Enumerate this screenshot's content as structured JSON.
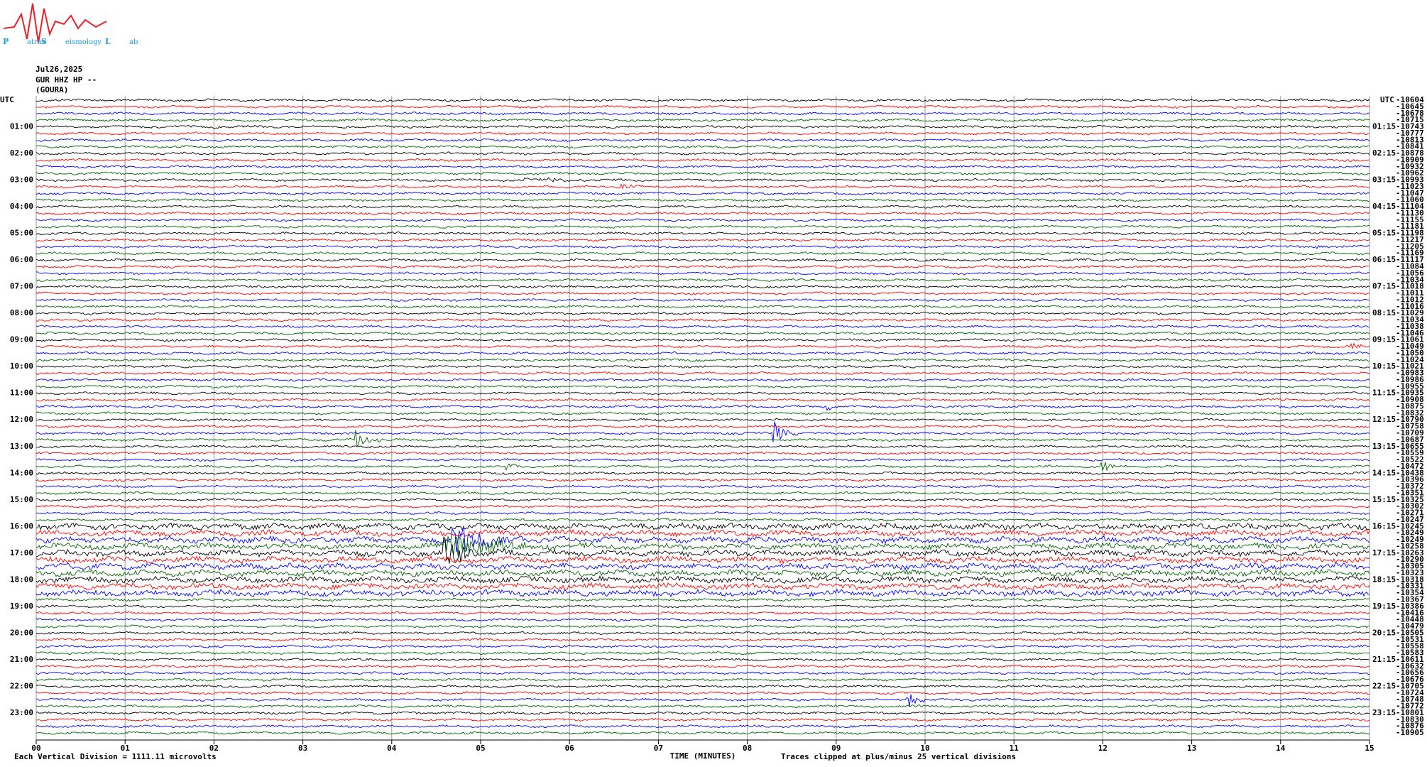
{
  "logo": {
    "letters": [
      "P",
      "S",
      "L"
    ],
    "words": [
      "atras",
      "eismology",
      "ab"
    ]
  },
  "header": {
    "date": "Jul26,2025",
    "station": "GUR HHZ HP --",
    "site": "(GOURA)"
  },
  "plot": {
    "utc_left": "UTC",
    "utc_right": "UTC",
    "left_labels": [
      "01:00",
      "02:00",
      "03:00",
      "04:00",
      "05:00",
      "06:00",
      "07:00",
      "08:00",
      "09:00",
      "10:00",
      "11:00",
      "12:00",
      "13:00",
      "14:00",
      "15:00",
      "16:00",
      "17:00",
      "18:00",
      "19:00",
      "20:00",
      "21:00",
      "22:00",
      "23:00"
    ],
    "right_labels": [
      "01:15",
      "02:15",
      "03:15",
      "04:15",
      "05:15",
      "06:15",
      "07:15",
      "08:15",
      "09:15",
      "10:15",
      "11:15",
      "12:15",
      "13:15",
      "14:15",
      "15:15",
      "16:15",
      "17:15",
      "18:15",
      "19:15",
      "20:15",
      "21:15",
      "22:15",
      "23:15"
    ],
    "trace_offsets": [
      "-10604",
      "-10645",
      "-10678",
      "-10715",
      "-10743",
      "-10777",
      "-10813",
      "-10841",
      "-10878",
      "-10909",
      "-10932",
      "-10962",
      "-10993",
      "-11023",
      "-11047",
      "-11060",
      "-11104",
      "-11130",
      "-11155",
      "-11181",
      "-11198",
      "-11217",
      "-11205",
      "-11169",
      "-11117",
      "-11084",
      "-11056",
      "-11034",
      "-11018",
      "-11011",
      "-11012",
      "-11016",
      "-11029",
      "-11034",
      "-11038",
      "-11046",
      "-11061",
      "-11049",
      "-11050",
      "-11024",
      "-11021",
      "-10983",
      "-10986",
      "-10955",
      "-10935",
      "-10908",
      "-10875",
      "-10832",
      "-10790",
      "-10758",
      "-10709",
      "-10687",
      "-10655",
      "-10559",
      "-10522",
      "-10472",
      "-10438",
      "-10396",
      "-10372",
      "-10351",
      "-10325",
      "-10302",
      "-10271",
      "-10247",
      "-10245",
      "-10249",
      "-10249",
      "-10258",
      "-10263",
      "-10290",
      "-10305",
      "-10323",
      "-10318",
      "-10331",
      "-10354",
      "-10367",
      "-10386",
      "-10416",
      "-10448",
      "-10479",
      "-10505",
      "-10531",
      "-10558",
      "-10583",
      "-10611",
      "-10632",
      "-10656",
      "-10676",
      "-10705",
      "-10724",
      "-10748",
      "-10772",
      "-10801",
      "-10830",
      "-10876",
      "-10905"
    ],
    "x_ticks": [
      "00",
      "01",
      "02",
      "03",
      "04",
      "05",
      "06",
      "07",
      "08",
      "09",
      "10",
      "11",
      "12",
      "13",
      "14",
      "15"
    ],
    "x_title": "TIME (MINUTES)",
    "scale_note": "Each Vertical Division = 1111.11 microvolts",
    "clip_note": "Traces clipped at plus/minus 25 vertical divisions",
    "trace_colors": [
      "#000000",
      "#ff0000",
      "#0000ff",
      "#006400"
    ]
  }
}
